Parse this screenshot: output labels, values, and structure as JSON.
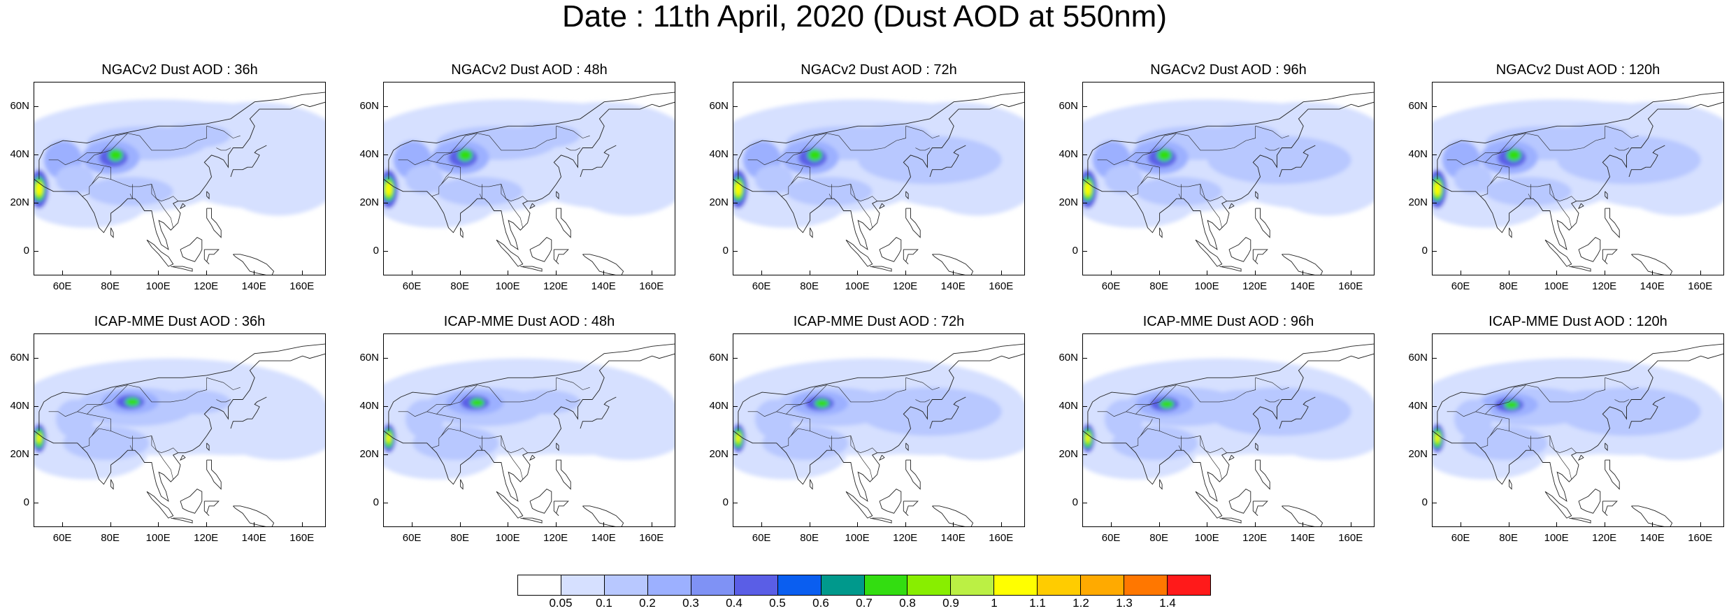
{
  "title": "Date : 11th April, 2020 (Dust AOD at 550nm)",
  "axis": {
    "x_ticks": [
      "60E",
      "80E",
      "100E",
      "120E",
      "140E",
      "160E"
    ],
    "x_values": [
      60,
      80,
      100,
      120,
      140,
      160
    ],
    "y_ticks": [
      "60N",
      "40N",
      "20N",
      "0"
    ],
    "y_values": [
      60,
      40,
      20,
      0
    ],
    "lon_range": [
      48,
      170
    ],
    "lat_range": [
      -10,
      70
    ]
  },
  "panels": [
    {
      "title": "NGACv2 Dust AOD : 36h",
      "model": "NGACv2",
      "lead": "36h"
    },
    {
      "title": "NGACv2 Dust AOD : 48h",
      "model": "NGACv2",
      "lead": "48h"
    },
    {
      "title": "NGACv2 Dust AOD : 72h",
      "model": "NGACv2",
      "lead": "72h"
    },
    {
      "title": "NGACv2 Dust AOD : 96h",
      "model": "NGACv2",
      "lead": "96h"
    },
    {
      "title": "NGACv2 Dust AOD : 120h",
      "model": "NGACv2",
      "lead": "120h"
    },
    {
      "title": "ICAP-MME Dust AOD : 36h",
      "model": "ICAP-MME",
      "lead": "36h"
    },
    {
      "title": "ICAP-MME Dust AOD : 48h",
      "model": "ICAP-MME",
      "lead": "48h"
    },
    {
      "title": "ICAP-MME Dust AOD : 72h",
      "model": "ICAP-MME",
      "lead": "72h"
    },
    {
      "title": "ICAP-MME Dust AOD : 96h",
      "model": "ICAP-MME",
      "lead": "96h"
    },
    {
      "title": "ICAP-MME Dust AOD : 120h",
      "model": "ICAP-MME",
      "lead": "120h"
    }
  ],
  "colorbar": {
    "labels": [
      "0.05",
      "0.1",
      "0.2",
      "0.3",
      "0.4",
      "0.5",
      "0.6",
      "0.7",
      "0.8",
      "0.9",
      "1",
      "1.1",
      "1.2",
      "1.3",
      "1.4"
    ],
    "colors": [
      "#ffffff",
      "#d6e0ff",
      "#b8c8ff",
      "#9cb0ff",
      "#7f92f5",
      "#5a5ee6",
      "#0a5ef0",
      "#00998c",
      "#33dd11",
      "#88ee00",
      "#bbf044",
      "#ffff00",
      "#ffcc00",
      "#ffaa00",
      "#ff7700",
      "#ff1a1a"
    ]
  }
}
